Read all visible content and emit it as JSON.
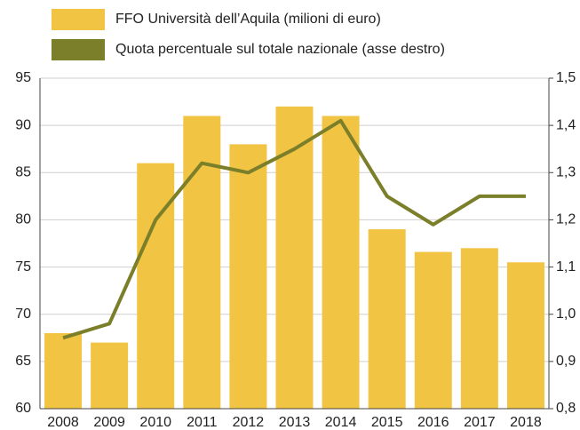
{
  "chart_data": {
    "type": "bar",
    "categories": [
      "2008",
      "2009",
      "2010",
      "2011",
      "2012",
      "2013",
      "2014",
      "2015",
      "2016",
      "2017",
      "2018"
    ],
    "series": [
      {
        "name": "FFO Università dell’Aquila (milioni di euro)",
        "type": "bar",
        "color": "#f2c443",
        "values": [
          68,
          67,
          86,
          91,
          88,
          92,
          91,
          79,
          76.6,
          77,
          75.5
        ]
      },
      {
        "name": "Quota percentuale sul totale nazionale (asse destro)",
        "type": "line",
        "axis": "y2",
        "color": "#7b7f2a",
        "values": [
          0.95,
          0.98,
          1.2,
          1.32,
          1.3,
          1.35,
          1.41,
          1.25,
          1.19,
          1.25,
          1.25
        ]
      }
    ],
    "ylim": [
      60,
      95
    ],
    "yticks": [
      60,
      65,
      70,
      75,
      80,
      85,
      90,
      95
    ],
    "y2lim": [
      0.8,
      1.5
    ],
    "y2ticks": [
      {
        "value": 0.8,
        "label": "0,8"
      },
      {
        "value": 0.9,
        "label": "0,9"
      },
      {
        "value": 1.0,
        "label": "1,0"
      },
      {
        "value": 1.1,
        "label": "1,1"
      },
      {
        "value": 1.2,
        "label": "1,2"
      },
      {
        "value": 1.3,
        "label": "1,3"
      },
      {
        "value": 1.4,
        "label": "1,4"
      },
      {
        "value": 1.5,
        "label": "1,5"
      }
    ],
    "grid": true,
    "legend": "top-left"
  }
}
